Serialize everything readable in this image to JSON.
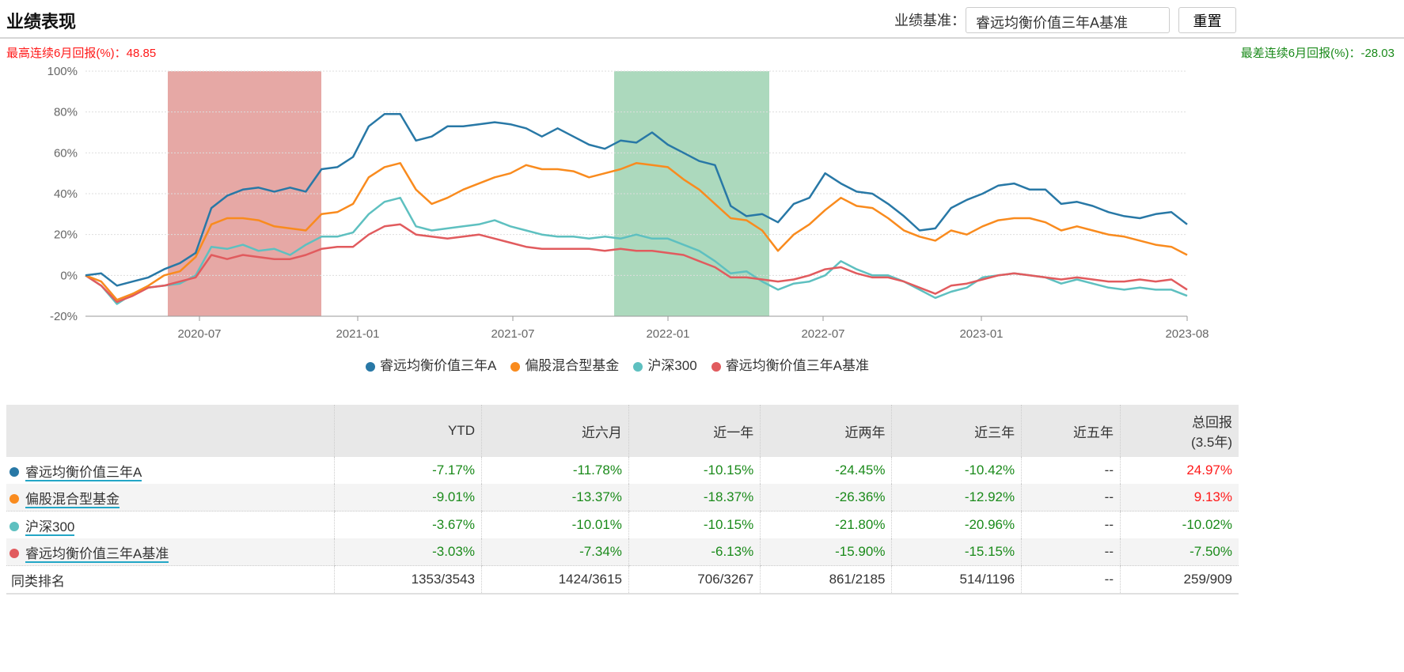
{
  "header": {
    "title": "业绩表现",
    "benchmark_label": "业绩基准：",
    "benchmark_value": "睿远均衡价值三年A基准",
    "reset_label": "重置"
  },
  "stats": {
    "best_label": "最高连续6月回报(%)：",
    "best_value": "48.85",
    "worst_label": "最差连续6月回报(%)：",
    "worst_value": "-28.03"
  },
  "colors": {
    "fund": "#2878a6",
    "mixed": "#f98b1e",
    "hs300": "#5ec0c0",
    "bench": "#e15b5e",
    "best_band": "#e6a8a5",
    "worst_band": "#acd9bd"
  },
  "chart_data": {
    "type": "line",
    "title": "",
    "xlabel": "",
    "ylabel": "",
    "x_range": [
      2020.14,
      2023.62
    ],
    "ylim": [
      -20,
      100
    ],
    "yticks": [
      100,
      80,
      60,
      40,
      20,
      0,
      -20
    ],
    "ytick_labels": [
      "100%",
      "80%",
      "60%",
      "40%",
      "20%",
      "0%",
      "-20%"
    ],
    "xticks": [
      {
        "v": 2020.5,
        "label": "2020-07"
      },
      {
        "v": 2021.0,
        "label": "2021-01"
      },
      {
        "v": 2021.49,
        "label": "2021-07"
      },
      {
        "v": 2021.98,
        "label": "2022-01"
      },
      {
        "v": 2022.47,
        "label": "2022-07"
      },
      {
        "v": 2022.97,
        "label": "2023-01"
      },
      {
        "v": 2023.62,
        "label": "2023-08"
      }
    ],
    "grid": true,
    "legend_position": "bottom",
    "bands": [
      {
        "name": "best-6m",
        "from": 2020.4,
        "to": 2020.885
      },
      {
        "name": "worst-6m",
        "from": 2021.81,
        "to": 2022.3
      }
    ],
    "series": [
      {
        "name": "睿远均衡价值三年A",
        "key": "fund",
        "values": [
          0,
          1,
          -5,
          -3,
          -1,
          3,
          6,
          11,
          33,
          39,
          42,
          43,
          41,
          43,
          41,
          52,
          53,
          58,
          73,
          79,
          79,
          66,
          68,
          73,
          73,
          74,
          75,
          74,
          72,
          68,
          72,
          68,
          64,
          62,
          66,
          65,
          70,
          64,
          60,
          56,
          54,
          34,
          29,
          30,
          26,
          35,
          38,
          50,
          45,
          41,
          40,
          35,
          29,
          22,
          23,
          33,
          37,
          40,
          44,
          45,
          42,
          42,
          35,
          36,
          34,
          31,
          29,
          28,
          30,
          31,
          25
        ]
      },
      {
        "name": "偏股混合型基金",
        "key": "mixed",
        "values": [
          0,
          -3,
          -12,
          -9,
          -5,
          0,
          2,
          9,
          25,
          28,
          28,
          27,
          24,
          23,
          22,
          30,
          31,
          35,
          48,
          53,
          55,
          42,
          35,
          38,
          42,
          45,
          48,
          50,
          54,
          52,
          52,
          51,
          48,
          50,
          52,
          55,
          54,
          53,
          47,
          42,
          35,
          28,
          27,
          22,
          12,
          20,
          25,
          32,
          38,
          34,
          33,
          28,
          22,
          19,
          17,
          22,
          20,
          24,
          27,
          28,
          28,
          26,
          22,
          24,
          22,
          20,
          19,
          17,
          15,
          14,
          10
        ]
      },
      {
        "name": "沪深300",
        "key": "hs300",
        "values": [
          0,
          -5,
          -14,
          -9,
          -6,
          -5,
          -4,
          0,
          14,
          13,
          15,
          12,
          13,
          10,
          15,
          19,
          19,
          21,
          30,
          36,
          38,
          24,
          22,
          23,
          24,
          25,
          27,
          24,
          22,
          20,
          19,
          19,
          18,
          19,
          18,
          20,
          18,
          18,
          15,
          12,
          7,
          1,
          2,
          -3,
          -7,
          -4,
          -3,
          0,
          7,
          3,
          0,
          0,
          -3,
          -7,
          -11,
          -8,
          -6,
          -1,
          0,
          1,
          0,
          -1,
          -4,
          -2,
          -4,
          -6,
          -7,
          -6,
          -7,
          -7,
          -10
        ]
      },
      {
        "name": "睿远均衡价值三年A基准",
        "key": "bench",
        "values": [
          0,
          -5,
          -13,
          -10,
          -6,
          -5,
          -3,
          -1,
          10,
          8,
          10,
          9,
          8,
          8,
          10,
          13,
          14,
          14,
          20,
          24,
          25,
          20,
          19,
          18,
          19,
          20,
          18,
          16,
          14,
          13,
          13,
          13,
          13,
          12,
          13,
          12,
          12,
          11,
          10,
          7,
          4,
          -1,
          -1,
          -2,
          -3,
          -2,
          0,
          3,
          4,
          1,
          -1,
          -1,
          -3,
          -6,
          -9,
          -5,
          -4,
          -2,
          0,
          1,
          0,
          -1,
          -2,
          -1,
          -2,
          -3,
          -3,
          -2,
          -3,
          -2,
          -7
        ]
      }
    ]
  },
  "table": {
    "headers": [
      "",
      "YTD",
      "近六月",
      "近一年",
      "近两年",
      "近三年",
      "近五年",
      "总回报",
      "(3.5年)"
    ],
    "rows": [
      {
        "name": "睿远均衡价值三年A",
        "key": "fund",
        "cells": [
          "-7.17%",
          "-11.78%",
          "-10.15%",
          "-24.45%",
          "-10.42%",
          "--",
          "24.97%"
        ]
      },
      {
        "name": "偏股混合型基金",
        "key": "mixed",
        "cells": [
          "-9.01%",
          "-13.37%",
          "-18.37%",
          "-26.36%",
          "-12.92%",
          "--",
          "9.13%"
        ]
      },
      {
        "name": "沪深300",
        "key": "hs300",
        "cells": [
          "-3.67%",
          "-10.01%",
          "-10.15%",
          "-21.80%",
          "-20.96%",
          "--",
          "-10.02%"
        ]
      },
      {
        "name": "睿远均衡价值三年A基准",
        "key": "bench",
        "cells": [
          "-3.03%",
          "-7.34%",
          "-6.13%",
          "-15.90%",
          "-15.15%",
          "--",
          "-7.50%"
        ]
      }
    ],
    "rank": {
      "label": "同类排名",
      "cells": [
        "1353/3543",
        "1424/3615",
        "706/3267",
        "861/2185",
        "514/1196",
        "--",
        "259/909"
      ]
    }
  }
}
